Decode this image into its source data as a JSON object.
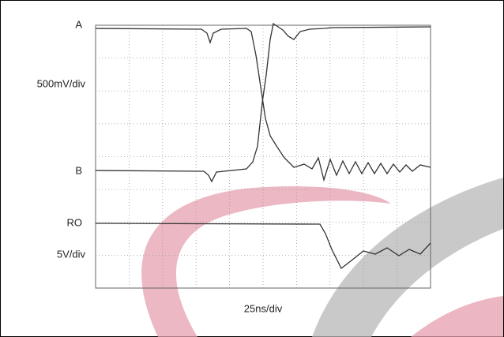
{
  "chart_data": {
    "type": "oscilloscope",
    "channels": [
      {
        "name": "A",
        "scale": "500mV/div"
      },
      {
        "name": "B"
      },
      {
        "name": "RO",
        "scale": "5V/div"
      }
    ],
    "x_scale": "25ns/div"
  }
}
